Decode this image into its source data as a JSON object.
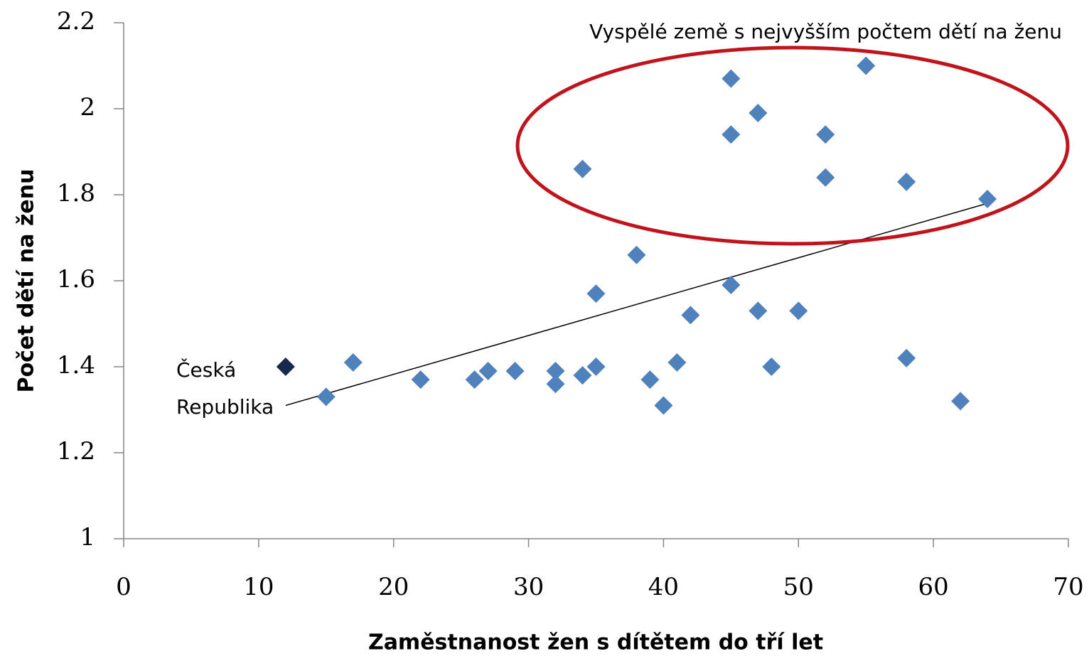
{
  "chart_data": {
    "type": "scatter",
    "xlabel": "Zaměstnanost žen s dítětem do tří let",
    "ylabel": "Počet dětí na ženu",
    "xlim": [
      0,
      70
    ],
    "xticks": [
      0,
      10,
      20,
      30,
      40,
      50,
      60,
      70
    ],
    "ylim": [
      1,
      2.2
    ],
    "yticks": [
      1,
      1.2,
      1.4,
      1.6,
      1.8,
      2,
      2.2
    ],
    "grid": false,
    "series": [
      {
        "color": "#4f81bd",
        "x": [
          15,
          17,
          22,
          26,
          27,
          29,
          32,
          32,
          34,
          35,
          34,
          35,
          38,
          39,
          40,
          41,
          42,
          45,
          45,
          45,
          47,
          47,
          48,
          50,
          52,
          52,
          55,
          58,
          58,
          62,
          64
        ],
        "values": [
          1.33,
          1.41,
          1.37,
          1.37,
          1.39,
          1.39,
          1.39,
          1.36,
          1.38,
          1.4,
          1.86,
          1.57,
          1.66,
          1.37,
          1.31,
          1.41,
          1.52,
          2.07,
          1.94,
          1.59,
          1.99,
          1.53,
          1.4,
          1.53,
          1.94,
          1.84,
          2.1,
          1.83,
          1.42,
          1.32,
          1.79
        ]
      },
      {
        "color": "#17294f",
        "x": [
          12
        ],
        "values": [
          1.4
        ]
      }
    ],
    "trendline": {
      "color": "#000000",
      "x": [
        12,
        64
      ],
      "values": [
        1.31,
        1.78
      ]
    },
    "annotations": [
      "Vyspělé země s nejvyšším počtem dětí na ženu",
      "Česká",
      "Republika"
    ],
    "highlight_color": "#c0141c"
  }
}
